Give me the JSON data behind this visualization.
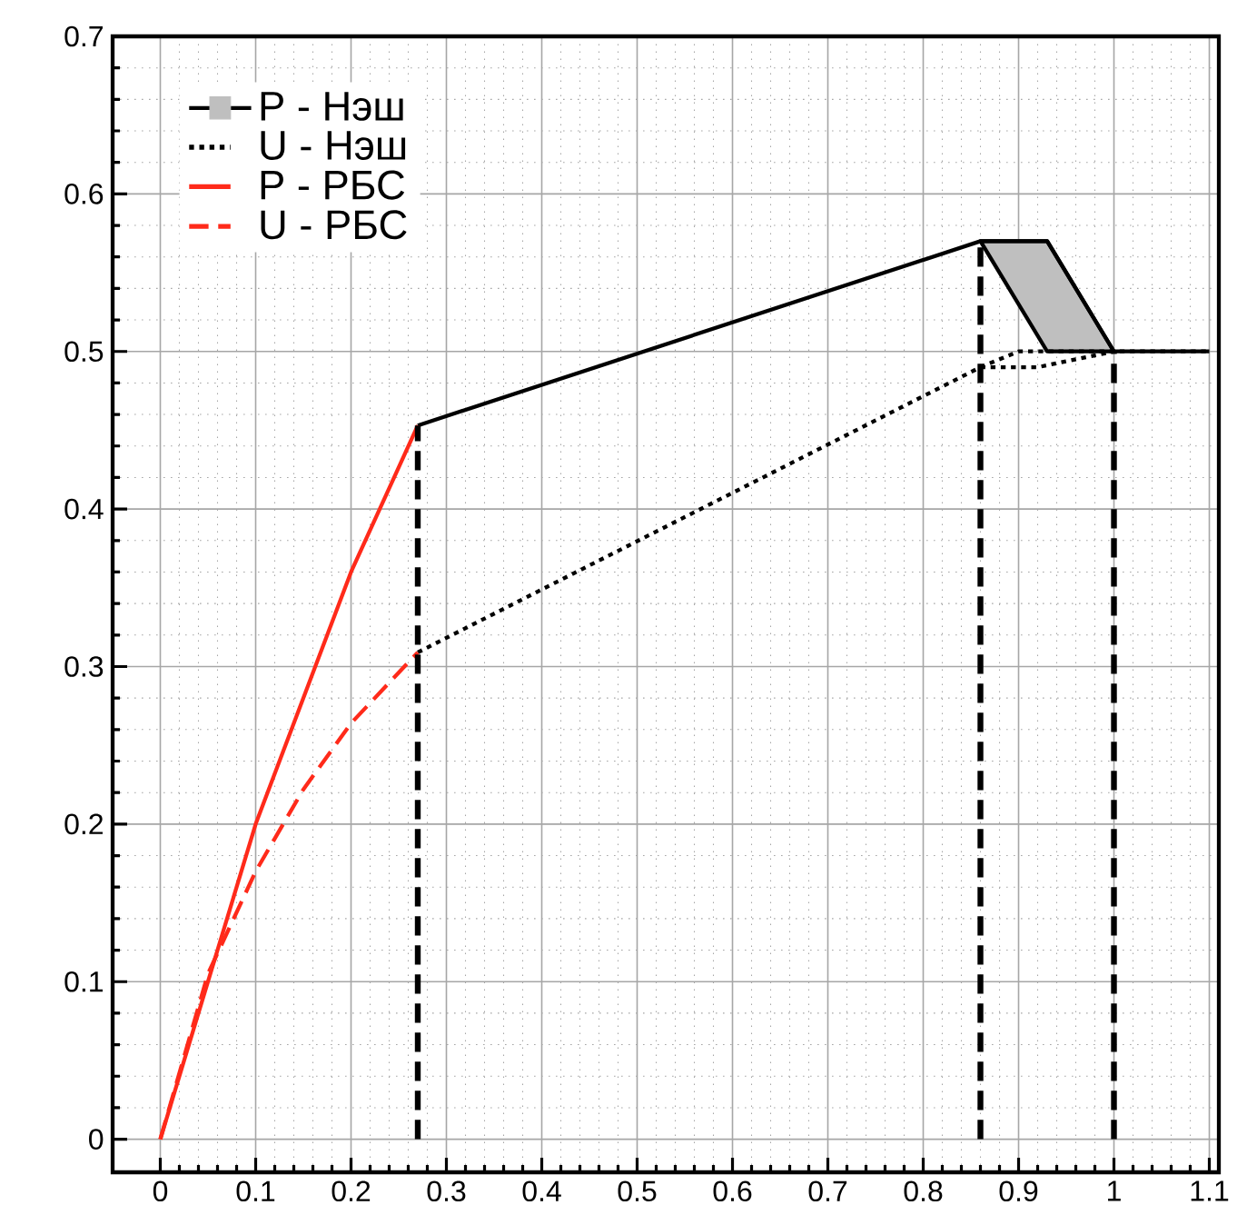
{
  "chart_data": {
    "type": "line",
    "xlim": [
      -0.05,
      1.11
    ],
    "ylim": [
      -0.021,
      0.7
    ],
    "xticks": [
      0,
      0.1,
      0.2,
      0.3,
      0.4,
      0.5,
      0.6,
      0.7,
      0.8,
      0.9,
      1,
      1.1
    ],
    "yticks": [
      0,
      0.1,
      0.2,
      0.3,
      0.4,
      0.5,
      0.6,
      0.7
    ],
    "grid": true,
    "legend": "top left",
    "marker": "none",
    "series": [
      {
        "name": "P - Нэш",
        "color": "#000000",
        "line_style": "solid",
        "x": [
          0.27,
          0.86,
          0.93,
          1,
          1.1
        ],
        "values": [
          0.453,
          0.57,
          0.57,
          0.5,
          0.5
        ],
        "lower": [
          null,
          0.57,
          0.5,
          0.5,
          null
        ],
        "upper": [
          null,
          0.57,
          0.57,
          0.5,
          null
        ]
      },
      {
        "name": "U - Нэш",
        "color": "#000000",
        "line_style": "dotted",
        "x": [
          0.27,
          0.86,
          0.9,
          1,
          1.1
        ],
        "values": [
          0.309,
          0.49,
          0.5,
          0.5,
          0.5
        ]
      },
      {
        "color": "#000000",
        "line_style": "dotted",
        "x": [
          0.86,
          0.92,
          1
        ],
        "values": [
          0.49,
          0.49,
          0.5
        ]
      },
      {
        "name": "P - РБС",
        "color": "#ff2a1a",
        "line_style": "solid",
        "x": [
          0,
          0.05,
          0.1,
          0.2,
          0.27
        ],
        "values": [
          0,
          0.1,
          0.2,
          0.36,
          0.453
        ]
      },
      {
        "name": "U - РБС",
        "color": "#ff2a1a",
        "line_style": "dashed",
        "x": [
          0,
          0.05,
          0.1,
          0.15,
          0.2,
          0.27
        ],
        "values": [
          0,
          0.105,
          0.17,
          0.222,
          0.264,
          0.309
        ]
      },
      {
        "color": "#000000",
        "line_style": "dashed",
        "x": [
          0.27,
          0.27
        ],
        "values": [
          0,
          0.453
        ]
      },
      {
        "color": "#000000",
        "line_style": "dashed",
        "x": [
          0.86,
          0.86
        ],
        "values": [
          0,
          0.57
        ]
      },
      {
        "color": "#000000",
        "line_style": "dashed",
        "x": [
          1,
          1
        ],
        "values": [
          0,
          0.5
        ]
      }
    ]
  }
}
